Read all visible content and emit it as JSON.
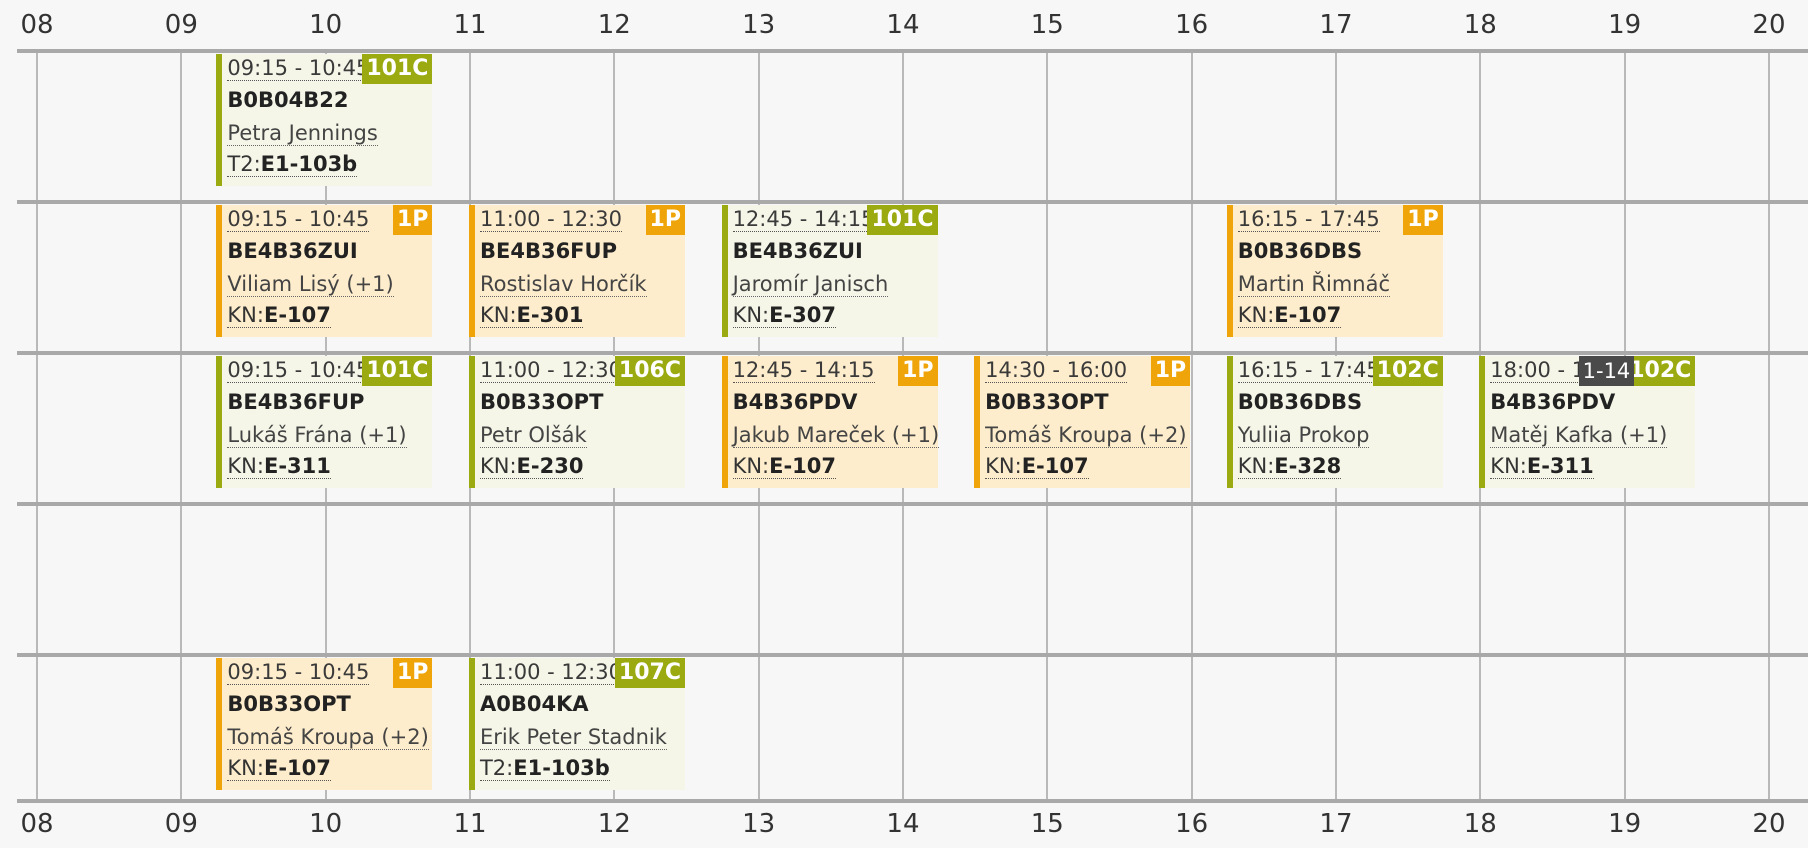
{
  "hours": [
    "08",
    "09",
    "10",
    "11",
    "12",
    "13",
    "14",
    "15",
    "16",
    "17",
    "18",
    "19",
    "20"
  ],
  "rows": [
    [
      {
        "type": "lab",
        "time": "09:15 - 10:45",
        "badge": "101C",
        "code": "B0B04B22",
        "teacher": "Petra Jennings",
        "room_prefix": "T2:",
        "room": "E1-103b"
      }
    ],
    [
      {
        "type": "lec",
        "time": "09:15 - 10:45",
        "badge": "1P",
        "code": "BE4B36ZUI",
        "teacher": "Viliam Lisý (+1)",
        "room_prefix": "KN:",
        "room": "E-107"
      },
      {
        "type": "lec",
        "time": "11:00 - 12:30",
        "badge": "1P",
        "code": "BE4B36FUP",
        "teacher": "Rostislav Horčík",
        "room_prefix": "KN:",
        "room": "E-301"
      },
      {
        "type": "lab",
        "time": "12:45 - 14:15",
        "badge": "101C",
        "code": "BE4B36ZUI",
        "teacher": "Jaromír Janisch",
        "room_prefix": "KN:",
        "room": "E-307"
      },
      {
        "type": "lec",
        "time": "16:15 - 17:45",
        "badge": "1P",
        "code": "B0B36DBS",
        "teacher": "Martin Řimnáč",
        "room_prefix": "KN:",
        "room": "E-107"
      }
    ],
    [
      {
        "type": "lab",
        "time": "09:15 - 10:45",
        "badge": "101C",
        "code": "BE4B36FUP",
        "teacher": "Lukáš Frána (+1)",
        "room_prefix": "KN:",
        "room": "E-311"
      },
      {
        "type": "lab",
        "time": "11:00 - 12:30",
        "badge": "106C",
        "code": "B0B33OPT",
        "teacher": "Petr Olšák",
        "room_prefix": "KN:",
        "room": "E-230"
      },
      {
        "type": "lec",
        "time": "12:45 - 14:15",
        "badge": "1P",
        "code": "B4B36PDV",
        "teacher": "Jakub Mareček (+1)",
        "room_prefix": "KN:",
        "room": "E-107"
      },
      {
        "type": "lec",
        "time": "14:30 - 16:00",
        "badge": "1P",
        "code": "B0B33OPT",
        "teacher": "Tomáš Kroupa (+2)",
        "room_prefix": "KN:",
        "room": "E-107"
      },
      {
        "type": "lab",
        "time": "16:15 - 17:45",
        "badge": "102C",
        "code": "B0B36DBS",
        "teacher": "Yuliia Prokop",
        "room_prefix": "KN:",
        "room": "E-328"
      },
      {
        "type": "lab",
        "time": "18:00 - 19:30",
        "badge": "102C",
        "weeks": "1-14",
        "code": "B4B36PDV",
        "teacher": "Matěj Kafka (+1)",
        "room_prefix": "KN:",
        "room": "E-311"
      }
    ],
    [],
    [
      {
        "type": "lec",
        "time": "09:15 - 10:45",
        "badge": "1P",
        "code": "B0B33OPT",
        "teacher": "Tomáš Kroupa (+2)",
        "room_prefix": "KN:",
        "room": "E-107"
      },
      {
        "type": "lab",
        "time": "11:00 - 12:30",
        "badge": "107C",
        "code": "A0B04KA",
        "teacher": "Erik Peter Stadnik",
        "room_prefix": "T2:",
        "room": "E1-103b"
      }
    ]
  ]
}
